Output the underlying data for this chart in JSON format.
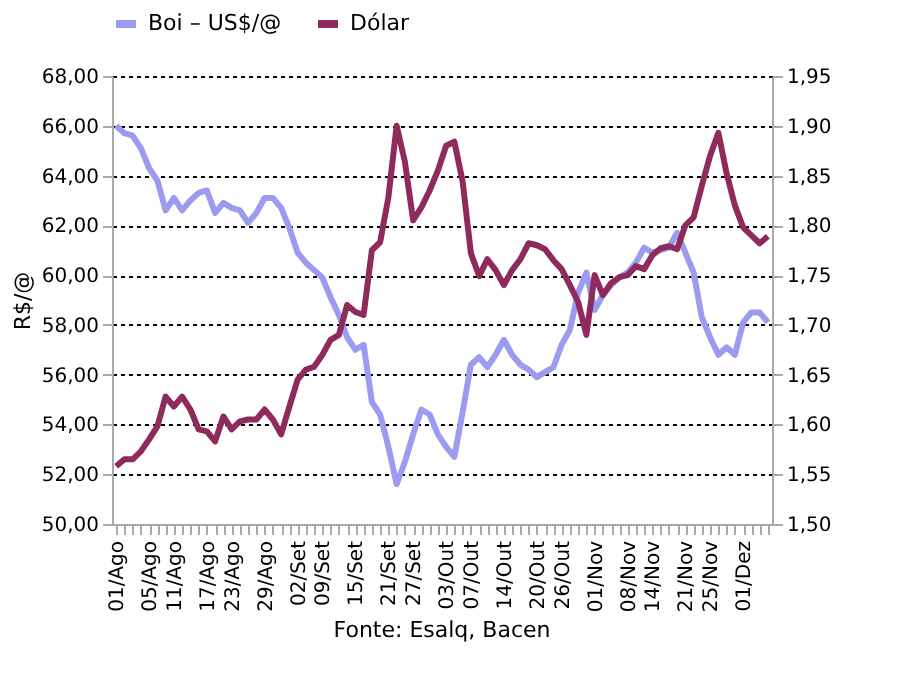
{
  "chart_data": {
    "type": "line",
    "ylabel": "R$/@",
    "annotations": [
      "Fonte: Esalq, Bacen"
    ],
    "categories": [
      "01/Ago",
      null,
      null,
      null,
      "05/Ago",
      null,
      null,
      "11/Ago",
      null,
      null,
      null,
      "17/Ago",
      null,
      null,
      "23/Ago",
      null,
      null,
      null,
      "29/Ago",
      null,
      null,
      null,
      "02/Set",
      null,
      null,
      "09/Set",
      null,
      null,
      null,
      "15/Set",
      null,
      null,
      null,
      "21/Set",
      null,
      null,
      "27/Set",
      null,
      null,
      null,
      "03/Out",
      null,
      null,
      "07/Out",
      null,
      null,
      null,
      "14/Out",
      null,
      null,
      null,
      "20/Out",
      null,
      null,
      "26/Out",
      null,
      null,
      null,
      "01/Nov",
      null,
      null,
      null,
      "08/Nov",
      null,
      null,
      "14/Nov",
      null,
      null,
      null,
      "21/Nov",
      null,
      null,
      "25/Nov",
      null,
      null,
      null,
      "01/Dez",
      null,
      null,
      null
    ],
    "series": [
      {
        "name": "Boi – US$/@",
        "color": "#9b9bf0",
        "values": [
          66.0,
          65.7,
          65.6,
          65.1,
          64.3,
          63.8,
          62.6,
          63.1,
          62.6,
          63.0,
          63.3,
          63.4,
          62.5,
          62.9,
          62.7,
          62.6,
          62.1,
          62.5,
          63.1,
          63.1,
          62.7,
          61.9,
          60.9,
          60.5,
          60.2,
          59.9,
          59.1,
          58.4,
          57.5,
          57.0,
          57.2,
          54.9,
          54.4,
          53.1,
          51.6,
          52.5,
          53.6,
          54.6,
          54.4,
          53.6,
          53.1,
          52.7,
          54.5,
          56.4,
          56.7,
          56.3,
          56.8,
          57.4,
          56.8,
          56.4,
          56.2,
          55.9,
          56.1,
          56.3,
          57.2,
          57.8,
          59.3,
          60.1,
          58.6,
          59.2,
          59.6,
          59.9,
          60.1,
          60.5,
          61.1,
          60.9,
          61.0,
          61.1,
          61.7,
          60.9,
          60.1,
          58.3,
          57.5,
          56.8,
          57.1,
          56.8,
          58.1,
          58.5,
          58.5,
          58.1
        ]
      },
      {
        "name": "Dólar",
        "color": "#8e2b5c",
        "axis": "y2",
        "values": [
          1.558,
          1.565,
          1.565,
          1.573,
          1.585,
          1.598,
          1.628,
          1.618,
          1.628,
          1.615,
          1.595,
          1.593,
          1.583,
          1.608,
          1.595,
          1.603,
          1.605,
          1.605,
          1.615,
          1.605,
          1.59,
          1.618,
          1.645,
          1.655,
          1.658,
          1.67,
          1.685,
          1.69,
          1.72,
          1.713,
          1.71,
          1.775,
          1.783,
          1.828,
          1.9,
          1.864,
          1.805,
          1.818,
          1.835,
          1.855,
          1.88,
          1.884,
          1.844,
          1.772,
          1.749,
          1.766,
          1.755,
          1.74,
          1.755,
          1.766,
          1.782,
          1.78,
          1.776,
          1.765,
          1.756,
          1.74,
          1.723,
          1.69,
          1.75,
          1.73,
          1.742,
          1.748,
          1.75,
          1.759,
          1.756,
          1.77,
          1.777,
          1.779,
          1.776,
          1.8,
          1.808,
          1.84,
          1.87,
          1.893,
          1.852,
          1.82,
          1.798,
          1.79,
          1.782,
          1.789
        ]
      }
    ],
    "ylim": [
      50,
      68
    ],
    "yticks": [
      {
        "value": 50,
        "label": "50,00"
      },
      {
        "value": 52,
        "label": "52,00"
      },
      {
        "value": 54,
        "label": "54,00"
      },
      {
        "value": 56,
        "label": "56,00"
      },
      {
        "value": 58,
        "label": "58,00"
      },
      {
        "value": 60,
        "label": "60,00"
      },
      {
        "value": 62,
        "label": "62,00"
      },
      {
        "value": 64,
        "label": "64,00"
      },
      {
        "value": 66,
        "label": "66,00"
      },
      {
        "value": 68,
        "label": "68,00"
      }
    ],
    "y2lim": [
      1.5,
      1.95
    ],
    "y2ticks": [
      {
        "value": 1.5,
        "label": "1,50"
      },
      {
        "value": 1.55,
        "label": "1,55"
      },
      {
        "value": 1.6,
        "label": "1,60"
      },
      {
        "value": 1.65,
        "label": "1,65"
      },
      {
        "value": 1.7,
        "label": "1,70"
      },
      {
        "value": 1.75,
        "label": "1,75"
      },
      {
        "value": 1.8,
        "label": "1,80"
      },
      {
        "value": 1.85,
        "label": "1,85"
      },
      {
        "value": 1.9,
        "label": "1,90"
      },
      {
        "value": 1.95,
        "label": "1,95"
      }
    ],
    "grid": "y",
    "legend": "top",
    "marker": "none",
    "line_style": "solid"
  }
}
